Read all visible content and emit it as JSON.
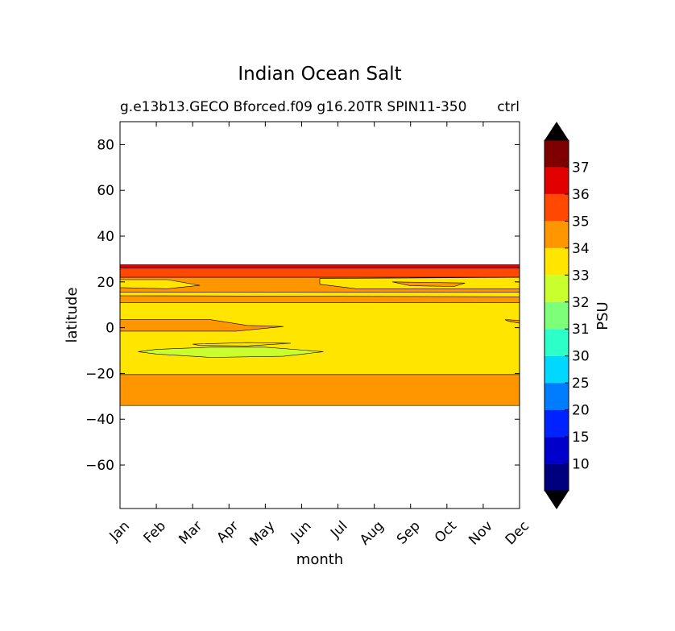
{
  "chart_data": {
    "type": "heatmap",
    "title": "Indian Ocean Salt",
    "subtitle_left": "g.e13b13.GECO Bforced.f09 g16.20TR SPIN11-350",
    "subtitle_right": "ctrl",
    "xlabel": "month",
    "ylabel": "latitude",
    "x_ticks": [
      "Jan",
      "Feb",
      "Mar",
      "Apr",
      "May",
      "Jun",
      "Jul",
      "Aug",
      "Sep",
      "Oct",
      "Nov",
      "Dec"
    ],
    "y_ticks": [
      80,
      60,
      40,
      20,
      0,
      -20,
      -40,
      -60
    ],
    "y_tick_labels": [
      "80",
      "60",
      "40",
      "20",
      "0",
      "−20",
      "−40",
      "−60"
    ],
    "xlim": [
      0,
      11
    ],
    "ylim": [
      -79,
      90
    ],
    "colorbar": {
      "label": "PSU",
      "tick_labels": [
        "10",
        "15",
        "20",
        "25",
        "30",
        "31",
        "32",
        "33",
        "34",
        "35",
        "36",
        "37"
      ],
      "levels": [
        10,
        15,
        20,
        25,
        30,
        31,
        32,
        33,
        34,
        35,
        36,
        37
      ],
      "colors": [
        "#00007f",
        "#0000cd",
        "#0022ff",
        "#007dff",
        "#00d8ff",
        "#2dffc9",
        "#7dff7a",
        "#c9ff2d",
        "#ffe500",
        "#ff9600",
        "#ff4800",
        "#e30000",
        "#7f0000"
      ],
      "extend": "both"
    },
    "bands": [
      {
        "value_class": 36.5,
        "lat_top": 27.5,
        "lat_bottom": 26.0
      },
      {
        "value_class": 35.5,
        "lat_top": 26.0,
        "lat_bottom": 22.0
      },
      {
        "value_class": 34.5,
        "lat_top": 22.0,
        "lat_bottom": 11.0
      },
      {
        "value_class": 33.5,
        "lat_top": 11.0,
        "lat_bottom": -20.5
      },
      {
        "value_class": 34.5,
        "lat_top": -20.5,
        "lat_bottom": -34.0
      }
    ],
    "patches": [
      {
        "value_class": 33.5,
        "points": [
          [
            0,
            21
          ],
          [
            1.3,
            21
          ],
          [
            2.2,
            18.5
          ],
          [
            1.3,
            17
          ],
          [
            0,
            17.5
          ]
        ]
      },
      {
        "value_class": 33.5,
        "points": [
          [
            5.5,
            21.5
          ],
          [
            11,
            22
          ],
          [
            11,
            17
          ],
          [
            6.5,
            17
          ],
          [
            5.5,
            19
          ]
        ]
      },
      {
        "value_class": 34.5,
        "points": [
          [
            7.5,
            20
          ],
          [
            9.5,
            19.5
          ],
          [
            9.2,
            18
          ],
          [
            8,
            18.3
          ]
        ]
      },
      {
        "value_class": 33.5,
        "points": [
          [
            0,
            15.5
          ],
          [
            11,
            15.5
          ],
          [
            11,
            13.5
          ],
          [
            0,
            14
          ]
        ]
      },
      {
        "value_class": 34.5,
        "points": [
          [
            0,
            3.5
          ],
          [
            2.5,
            3.5
          ],
          [
            3.5,
            1
          ],
          [
            4.5,
            0.5
          ],
          [
            3.2,
            -1.5
          ],
          [
            1.5,
            -1.5
          ],
          [
            0,
            -1.5
          ]
        ]
      },
      {
        "value_class": 32.5,
        "points": [
          [
            1.0,
            -9.5
          ],
          [
            2.5,
            -8.5
          ],
          [
            4.0,
            -8.5
          ],
          [
            5.6,
            -10.5
          ],
          [
            4.5,
            -12.5
          ],
          [
            2.5,
            -13
          ],
          [
            1.0,
            -11.5
          ],
          [
            0.5,
            -10.5
          ]
        ]
      },
      {
        "value_class": 33.5,
        "points": [
          [
            2,
            -7.2
          ],
          [
            3.5,
            -6.5
          ],
          [
            4.7,
            -6.8
          ],
          [
            3.5,
            -8
          ],
          [
            2.2,
            -7.8
          ]
        ]
      },
      {
        "value_class": 34.5,
        "points": [
          [
            10.6,
            3.5
          ],
          [
            11,
            3.2
          ],
          [
            11,
            2.0
          ],
          [
            10.7,
            2.8
          ]
        ]
      }
    ]
  }
}
